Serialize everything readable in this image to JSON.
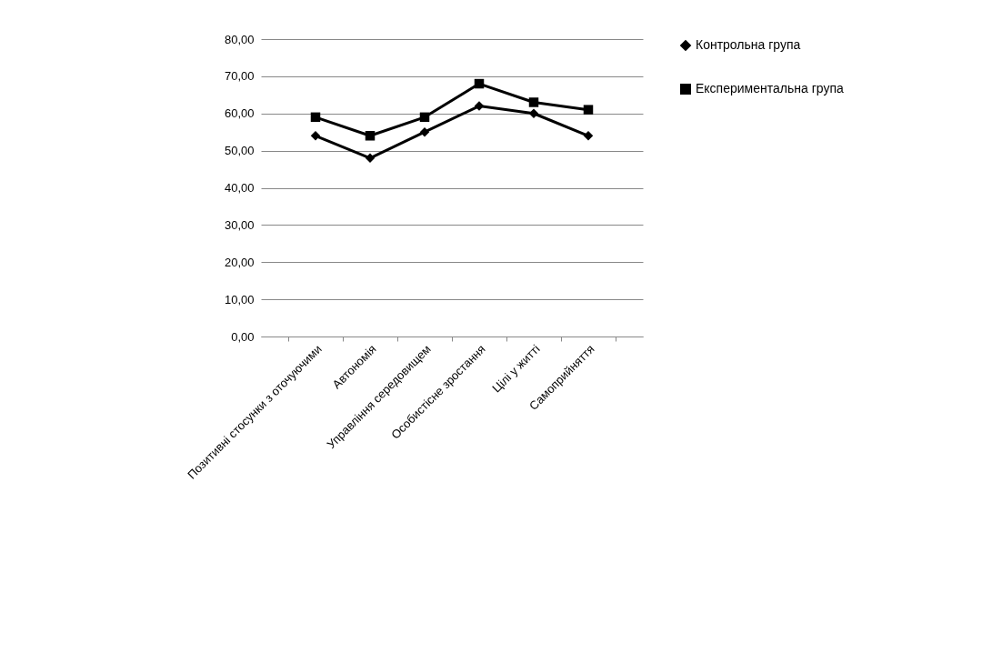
{
  "chart_data": {
    "type": "line",
    "categories": [
      "Позитивні стосунки з оточуючими",
      "Автономія",
      "Управління середовищем",
      "Особистісне зростання",
      "Цілі у житті",
      "Самоприйняття"
    ],
    "series": [
      {
        "name": "Контрольна група",
        "color": "#000000",
        "marker": "diamond",
        "values": [
          54,
          48,
          55,
          62,
          60,
          54
        ]
      },
      {
        "name": "Експериментальна група",
        "color": "#000000",
        "marker": "square",
        "values": [
          59,
          54,
          59,
          68,
          63,
          61
        ]
      }
    ],
    "ylim": [
      0,
      80
    ],
    "yticks": [
      {
        "value": 0,
        "label": "0,00"
      },
      {
        "value": 10,
        "label": "10,00"
      },
      {
        "value": 20,
        "label": "20,00"
      },
      {
        "value": 30,
        "label": "30,00"
      },
      {
        "value": 40,
        "label": "40,00"
      },
      {
        "value": 50,
        "label": "50,00"
      },
      {
        "value": 60,
        "label": "60,00"
      },
      {
        "value": 70,
        "label": "70,00"
      },
      {
        "value": 80,
        "label": "80,00"
      }
    ],
    "grid": "y",
    "legend": "right"
  }
}
